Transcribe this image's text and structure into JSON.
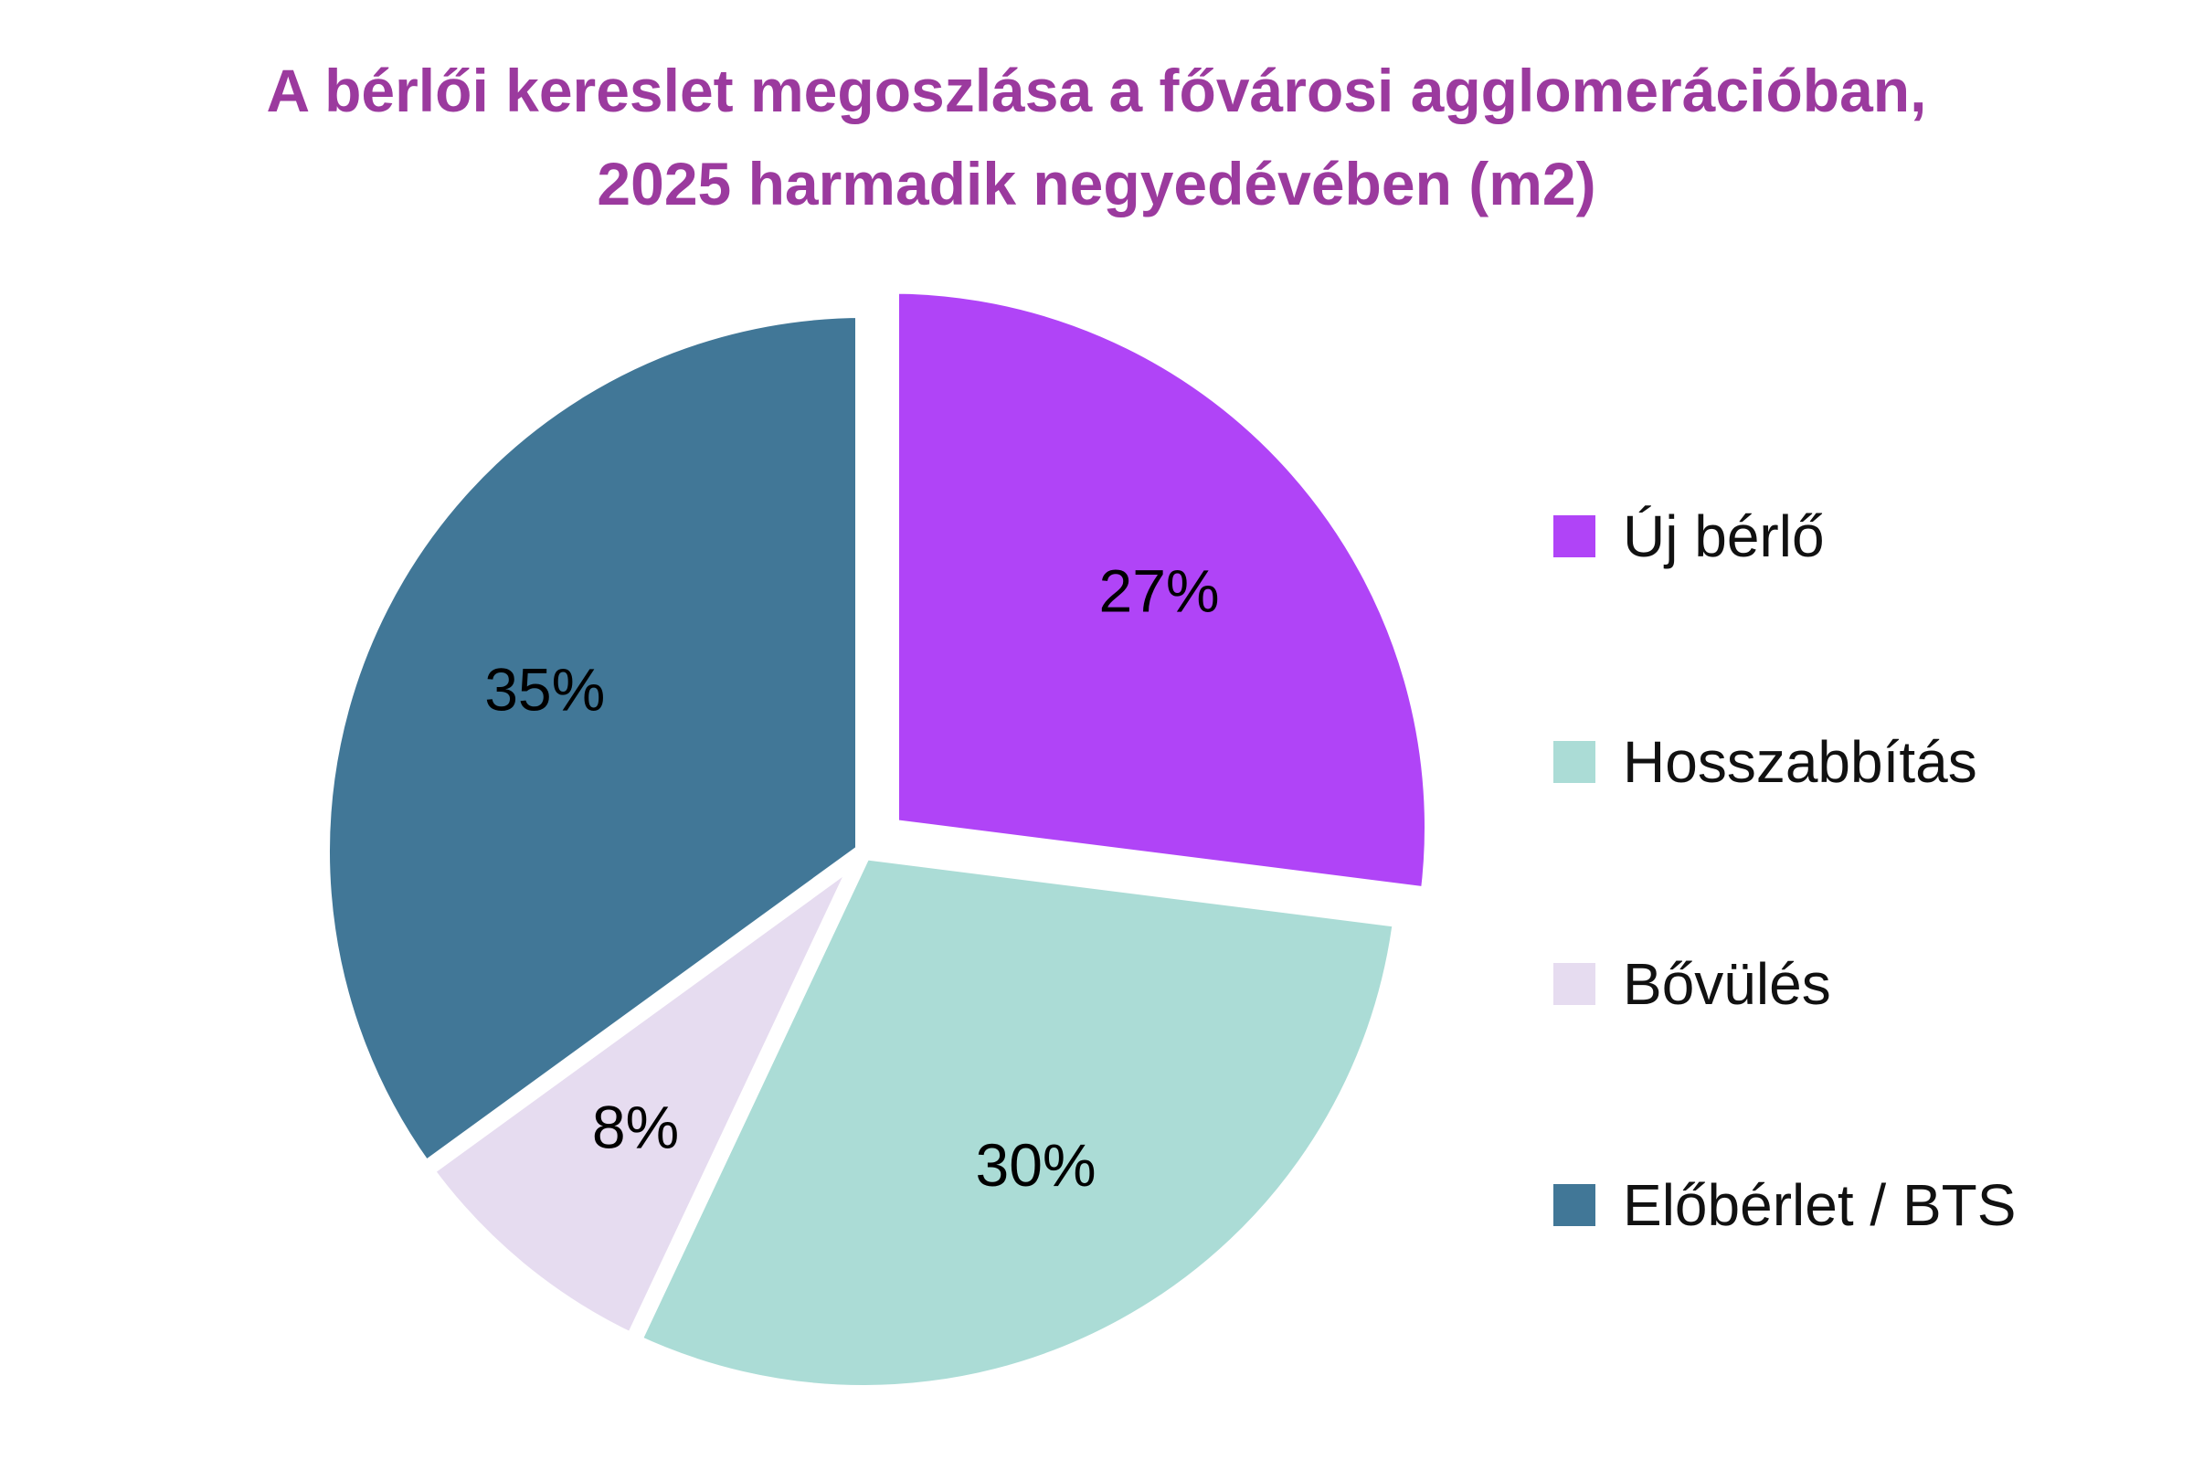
{
  "chart_data": {
    "type": "pie",
    "title_lines": [
      "A bérlői kereslet megoszlása a fővárosi agglomerációban,",
      "2025 harmadik negyedévében  (m2)"
    ],
    "unit": "%",
    "legend_position": "right",
    "slices": [
      {
        "name": "Új bérlő",
        "value": 27,
        "label": "27%",
        "color": "#B044F7",
        "exploded": true
      },
      {
        "name": "Hosszabbítás",
        "value": 30,
        "label": "30%",
        "color": "#ABDCD6",
        "exploded": false
      },
      {
        "name": "Bővülés",
        "value": 8,
        "label": "8%",
        "color": "#E6DCF0",
        "exploded": false
      },
      {
        "name": "Előbérlet / BTS",
        "value": 35,
        "label": "35%",
        "color": "#417797",
        "exploded": false
      }
    ]
  }
}
